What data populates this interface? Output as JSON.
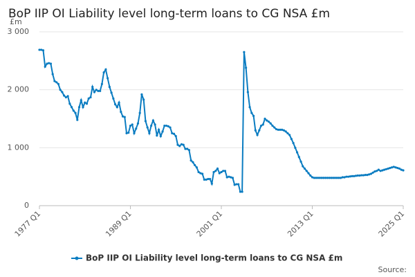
{
  "chart_data": {
    "type": "line",
    "title": "BoP IIP OI Liability level long-term loans to CG NSA £m",
    "y_unit": "£m",
    "source": "Source:",
    "categories": [
      "1977 Q1",
      null,
      null,
      null,
      null,
      null,
      null,
      null,
      null,
      null,
      null,
      null,
      null,
      null,
      null,
      null,
      null,
      null,
      null,
      null,
      null,
      null,
      null,
      null,
      null,
      null,
      null,
      null,
      null,
      null,
      null,
      null,
      null,
      null,
      null,
      null,
      null,
      null,
      null,
      null,
      null,
      null,
      null,
      null,
      null,
      null,
      null,
      null,
      "1989 Q1",
      null,
      null,
      null,
      null,
      null,
      null,
      null,
      null,
      null,
      null,
      null,
      null,
      null,
      null,
      null,
      null,
      null,
      null,
      null,
      null,
      null,
      null,
      null,
      null,
      null,
      null,
      null,
      null,
      null,
      null,
      null,
      null,
      null,
      null,
      null,
      null,
      null,
      null,
      null,
      null,
      null,
      null,
      null,
      null,
      null,
      null,
      null,
      "2001 Q1",
      null,
      null,
      null,
      null,
      null,
      null,
      null,
      null,
      null,
      null,
      null,
      null,
      null,
      null,
      null,
      null,
      null,
      null,
      null,
      null,
      null,
      null,
      null,
      null,
      null,
      null,
      null,
      null,
      null,
      null,
      null,
      null,
      null,
      null,
      null,
      null,
      null,
      null,
      null,
      null,
      null,
      null,
      null,
      null,
      null,
      null,
      null,
      "2013 Q1",
      null,
      null,
      null,
      null,
      null,
      null,
      null,
      null,
      null,
      null,
      null,
      null,
      null,
      null,
      null,
      null,
      null,
      null,
      null,
      null,
      null,
      null,
      null,
      null,
      null,
      null,
      null,
      null,
      null,
      null,
      null,
      null,
      null,
      null,
      null,
      null,
      null,
      null,
      null,
      null,
      null,
      null,
      null,
      null,
      null,
      null,
      null,
      "2025 Q1"
    ],
    "series": [
      {
        "name": "BoP IIP OI Liability level long-term loans to CG NSA £m",
        "color": "#0a7cc1",
        "values": [
          2690,
          2690,
          2680,
          2400,
          2450,
          2460,
          2450,
          2270,
          2150,
          2130,
          2100,
          2000,
          1960,
          1900,
          1870,
          1890,
          1760,
          1700,
          1640,
          1600,
          1480,
          1700,
          1820,
          1700,
          1780,
          1760,
          1850,
          1870,
          2050,
          1960,
          2000,
          1980,
          1980,
          2100,
          2300,
          2350,
          2200,
          2050,
          1950,
          1850,
          1750,
          1700,
          1780,
          1620,
          1540,
          1530,
          1250,
          1260,
          1380,
          1400,
          1250,
          1330,
          1420,
          1600,
          1920,
          1830,
          1460,
          1350,
          1250,
          1380,
          1470,
          1400,
          1210,
          1310,
          1200,
          1280,
          1380,
          1380,
          1370,
          1350,
          1250,
          1240,
          1200,
          1050,
          1030,
          1060,
          1050,
          980,
          980,
          960,
          780,
          750,
          700,
          660,
          580,
          560,
          550,
          450,
          450,
          460,
          460,
          380,
          580,
          600,
          640,
          560,
          580,
          600,
          600,
          490,
          500,
          490,
          480,
          360,
          370,
          370,
          240,
          240,
          2650,
          2380,
          1960,
          1700,
          1600,
          1550,
          1300,
          1220,
          1300,
          1380,
          1400,
          1500,
          1470,
          1450,
          1420,
          1380,
          1350,
          1320,
          1310,
          1310,
          1310,
          1300,
          1280,
          1250,
          1220,
          1150,
          1080,
          1000,
          920,
          840,
          760,
          680,
          640,
          600,
          560,
          520,
          490,
          480,
          480,
          480,
          480,
          480,
          480,
          480,
          480,
          480,
          480,
          480,
          480,
          480,
          480,
          480,
          490,
          490,
          500,
          500,
          505,
          510,
          510,
          515,
          520,
          520,
          525,
          525,
          530,
          530,
          540,
          550,
          570,
          590,
          600,
          620,
          600,
          610,
          620,
          630,
          640,
          650,
          660,
          670,
          660,
          650,
          640,
          620,
          610
        ]
      }
    ],
    "ylim": [
      0,
      3000
    ],
    "yticks": [
      {
        "value": 0,
        "label": "0"
      },
      {
        "value": 1000,
        "label": "1 000"
      },
      {
        "value": 2000,
        "label": "2 000"
      },
      {
        "value": 3000,
        "label": "3 000"
      }
    ],
    "grid": true
  }
}
